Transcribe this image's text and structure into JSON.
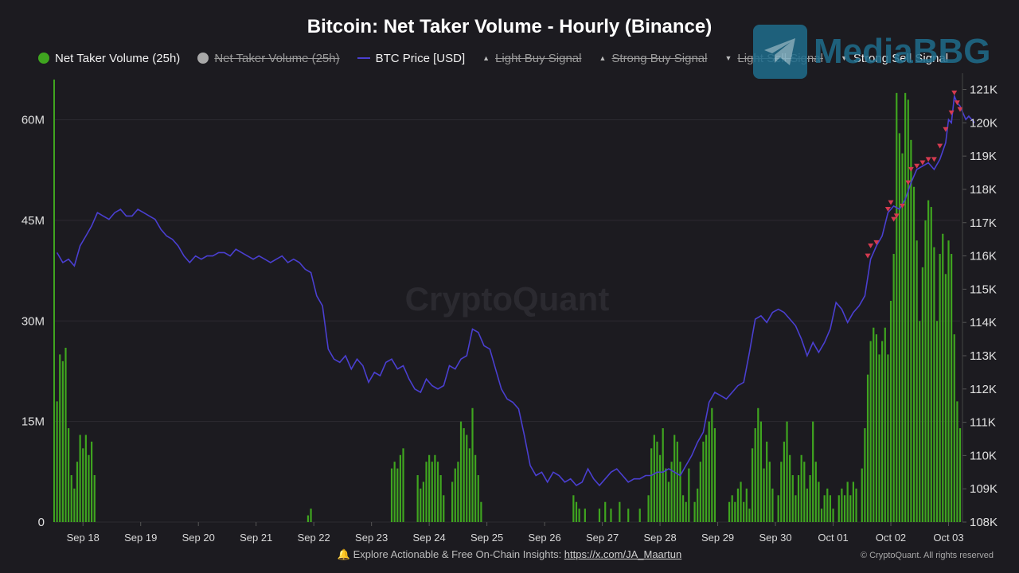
{
  "title": "Bitcoin: Net Taker Volume - Hourly (Binance)",
  "legend": [
    {
      "label": "Net Taker Volume (25h)",
      "symbol": "dot",
      "color": "#3fa51f",
      "active": true
    },
    {
      "label": "Net Taker Volume (25h)",
      "symbol": "dot",
      "color": "#a8a8a8",
      "active": false
    },
    {
      "label": "BTC Price [USD]",
      "symbol": "line",
      "color": "#4a3fd0",
      "active": true
    },
    {
      "label": "Light Buy Signal",
      "symbol": "triangle-up",
      "color": "#bbbbbb",
      "active": false
    },
    {
      "label": "Strong Buy Signal",
      "symbol": "triangle-up",
      "color": "#bbbbbb",
      "active": false
    },
    {
      "label": "Light Sell Signal",
      "symbol": "triangle-down",
      "color": "#bbbbbb",
      "active": false
    },
    {
      "label": "Strong Sell Signal",
      "symbol": "triangle-down",
      "color": "#bbbbbb",
      "active": true
    }
  ],
  "watermark": "CryptoQuant",
  "logo_text": "MediaBBG",
  "footer": {
    "prefix": "Explore Actionable & Free On-Chain Insights: ",
    "link": "https://x.com/JA_Maartun",
    "icon": "bell-icon"
  },
  "copyright": "© CryptoQuant. All rights reserved",
  "colors": {
    "background": "#1c1b20",
    "volume": "#3fa51f",
    "price": "#4a3fd0",
    "sell_signal": "#d43a4f",
    "grid": "#2c2b31"
  },
  "chart_data": {
    "type": "bar+line",
    "title": "Bitcoin: Net Taker Volume - Hourly (Binance)",
    "x_ticks": [
      "Sep 18",
      "Sep 19",
      "Sep 20",
      "Sep 21",
      "Sep 22",
      "Sep 23",
      "Sep 24",
      "Sep 25",
      "Sep 26",
      "Sep 27",
      "Sep 28",
      "Sep 29",
      "Sep 30",
      "Oct 01",
      "Oct 02",
      "Oct 03"
    ],
    "x_range_days": [
      17.5,
      33.2
    ],
    "y_left": {
      "ticks": [
        "0",
        "15M",
        "30M",
        "45M",
        "60M"
      ],
      "range": [
        0,
        66000000
      ]
    },
    "y_right": {
      "ticks": [
        "108K",
        "109K",
        "110K",
        "111K",
        "112K",
        "113K",
        "114K",
        "115K",
        "116K",
        "117K",
        "118K",
        "119K",
        "120K",
        "121K"
      ],
      "range": [
        108000,
        121300
      ]
    },
    "volume_bars": [
      [
        17.55,
        18
      ],
      [
        17.6,
        25
      ],
      [
        17.65,
        24
      ],
      [
        17.7,
        26
      ],
      [
        17.75,
        14
      ],
      [
        17.8,
        7
      ],
      [
        17.85,
        5
      ],
      [
        17.9,
        9
      ],
      [
        17.95,
        13
      ],
      [
        18.0,
        11
      ],
      [
        18.05,
        13
      ],
      [
        18.1,
        10
      ],
      [
        18.15,
        12
      ],
      [
        18.2,
        7
      ],
      [
        21.9,
        1
      ],
      [
        21.95,
        2
      ],
      [
        23.35,
        8
      ],
      [
        23.4,
        9
      ],
      [
        23.45,
        8
      ],
      [
        23.5,
        10
      ],
      [
        23.55,
        11
      ],
      [
        23.8,
        7
      ],
      [
        23.85,
        5
      ],
      [
        23.9,
        6
      ],
      [
        23.95,
        9
      ],
      [
        24.0,
        10
      ],
      [
        24.05,
        9
      ],
      [
        24.1,
        10
      ],
      [
        24.15,
        9
      ],
      [
        24.2,
        7
      ],
      [
        24.25,
        4
      ],
      [
        24.4,
        6
      ],
      [
        24.45,
        8
      ],
      [
        24.5,
        9
      ],
      [
        24.55,
        15
      ],
      [
        24.6,
        14
      ],
      [
        24.65,
        13
      ],
      [
        24.7,
        11
      ],
      [
        24.75,
        17
      ],
      [
        24.8,
        10
      ],
      [
        24.85,
        7
      ],
      [
        24.9,
        3
      ],
      [
        26.5,
        4
      ],
      [
        26.55,
        3
      ],
      [
        26.6,
        2
      ],
      [
        26.7,
        2
      ],
      [
        26.95,
        2
      ],
      [
        27.05,
        3
      ],
      [
        27.15,
        2
      ],
      [
        27.3,
        3
      ],
      [
        27.45,
        2
      ],
      [
        27.65,
        2
      ],
      [
        27.8,
        4
      ],
      [
        27.85,
        11
      ],
      [
        27.9,
        13
      ],
      [
        27.95,
        12
      ],
      [
        28.0,
        10
      ],
      [
        28.05,
        14
      ],
      [
        28.1,
        8
      ],
      [
        28.15,
        6
      ],
      [
        28.2,
        9
      ],
      [
        28.25,
        13
      ],
      [
        28.3,
        12
      ],
      [
        28.35,
        9
      ],
      [
        28.4,
        4
      ],
      [
        28.45,
        3
      ],
      [
        28.5,
        8
      ],
      [
        28.6,
        3
      ],
      [
        28.65,
        5
      ],
      [
        28.7,
        9
      ],
      [
        28.75,
        12
      ],
      [
        28.8,
        13
      ],
      [
        28.85,
        15
      ],
      [
        28.9,
        17
      ],
      [
        28.95,
        14
      ],
      [
        29.2,
        3
      ],
      [
        29.25,
        4
      ],
      [
        29.3,
        3
      ],
      [
        29.35,
        5
      ],
      [
        29.4,
        6
      ],
      [
        29.45,
        3
      ],
      [
        29.5,
        5
      ],
      [
        29.55,
        2
      ],
      [
        29.6,
        11
      ],
      [
        29.65,
        14
      ],
      [
        29.7,
        17
      ],
      [
        29.75,
        15
      ],
      [
        29.8,
        8
      ],
      [
        29.85,
        12
      ],
      [
        29.9,
        9
      ],
      [
        29.95,
        5
      ],
      [
        30.05,
        4
      ],
      [
        30.1,
        9
      ],
      [
        30.15,
        12
      ],
      [
        30.2,
        15
      ],
      [
        30.25,
        10
      ],
      [
        30.3,
        7
      ],
      [
        30.35,
        4
      ],
      [
        30.4,
        7
      ],
      [
        30.45,
        10
      ],
      [
        30.5,
        9
      ],
      [
        30.55,
        5
      ],
      [
        30.6,
        7
      ],
      [
        30.65,
        15
      ],
      [
        30.7,
        9
      ],
      [
        30.75,
        6
      ],
      [
        30.8,
        2
      ],
      [
        30.85,
        4
      ],
      [
        30.9,
        5
      ],
      [
        30.95,
        4
      ],
      [
        31.0,
        2
      ],
      [
        31.1,
        4
      ],
      [
        31.15,
        5
      ],
      [
        31.2,
        4
      ],
      [
        31.25,
        6
      ],
      [
        31.3,
        4
      ],
      [
        31.35,
        6
      ],
      [
        31.4,
        5
      ],
      [
        31.5,
        8
      ],
      [
        31.55,
        14
      ],
      [
        31.6,
        22
      ],
      [
        31.65,
        27
      ],
      [
        31.7,
        29
      ],
      [
        31.75,
        28
      ],
      [
        31.8,
        25
      ],
      [
        31.85,
        27
      ],
      [
        31.9,
        29
      ],
      [
        31.95,
        25
      ],
      [
        32.0,
        33
      ],
      [
        32.05,
        40
      ],
      [
        32.1,
        64
      ],
      [
        32.15,
        58
      ],
      [
        32.2,
        55
      ],
      [
        32.25,
        64
      ],
      [
        32.3,
        63
      ],
      [
        32.35,
        57
      ],
      [
        32.4,
        50
      ],
      [
        32.45,
        42
      ],
      [
        32.5,
        30
      ],
      [
        32.55,
        38
      ],
      [
        32.6,
        45
      ],
      [
        32.65,
        48
      ],
      [
        32.7,
        47
      ],
      [
        32.75,
        41
      ],
      [
        32.8,
        30
      ],
      [
        32.85,
        40
      ],
      [
        32.9,
        43
      ],
      [
        32.95,
        37
      ],
      [
        33.0,
        42
      ],
      [
        33.05,
        40
      ],
      [
        33.1,
        28
      ],
      [
        33.15,
        18
      ],
      [
        33.2,
        14
      ]
    ],
    "price_line": [
      [
        17.55,
        116.1
      ],
      [
        17.65,
        115.8
      ],
      [
        17.75,
        115.9
      ],
      [
        17.85,
        115.7
      ],
      [
        17.95,
        116.3
      ],
      [
        18.05,
        116.6
      ],
      [
        18.15,
        116.9
      ],
      [
        18.25,
        117.3
      ],
      [
        18.35,
        117.2
      ],
      [
        18.45,
        117.1
      ],
      [
        18.55,
        117.3
      ],
      [
        18.65,
        117.4
      ],
      [
        18.75,
        117.2
      ],
      [
        18.85,
        117.2
      ],
      [
        18.95,
        117.4
      ],
      [
        19.05,
        117.3
      ],
      [
        19.15,
        117.2
      ],
      [
        19.25,
        117.1
      ],
      [
        19.35,
        116.8
      ],
      [
        19.45,
        116.6
      ],
      [
        19.55,
        116.5
      ],
      [
        19.65,
        116.3
      ],
      [
        19.75,
        116.0
      ],
      [
        19.85,
        115.8
      ],
      [
        19.95,
        116.0
      ],
      [
        20.05,
        115.9
      ],
      [
        20.15,
        116.0
      ],
      [
        20.25,
        116.0
      ],
      [
        20.35,
        116.1
      ],
      [
        20.45,
        116.1
      ],
      [
        20.55,
        116.0
      ],
      [
        20.65,
        116.2
      ],
      [
        20.75,
        116.1
      ],
      [
        20.85,
        116.0
      ],
      [
        20.95,
        115.9
      ],
      [
        21.05,
        116.0
      ],
      [
        21.15,
        115.9
      ],
      [
        21.25,
        115.8
      ],
      [
        21.35,
        115.9
      ],
      [
        21.45,
        116.0
      ],
      [
        21.55,
        115.8
      ],
      [
        21.65,
        115.9
      ],
      [
        21.75,
        115.8
      ],
      [
        21.85,
        115.6
      ],
      [
        21.95,
        115.5
      ],
      [
        22.05,
        114.8
      ],
      [
        22.15,
        114.5
      ],
      [
        22.25,
        113.2
      ],
      [
        22.35,
        112.9
      ],
      [
        22.45,
        112.8
      ],
      [
        22.55,
        113.0
      ],
      [
        22.65,
        112.6
      ],
      [
        22.75,
        112.9
      ],
      [
        22.85,
        112.7
      ],
      [
        22.95,
        112.2
      ],
      [
        23.05,
        112.5
      ],
      [
        23.15,
        112.4
      ],
      [
        23.25,
        112.8
      ],
      [
        23.35,
        112.9
      ],
      [
        23.45,
        112.6
      ],
      [
        23.55,
        112.7
      ],
      [
        23.65,
        112.3
      ],
      [
        23.75,
        112.0
      ],
      [
        23.85,
        111.9
      ],
      [
        23.95,
        112.3
      ],
      [
        24.05,
        112.1
      ],
      [
        24.15,
        112.0
      ],
      [
        24.25,
        112.1
      ],
      [
        24.35,
        112.7
      ],
      [
        24.45,
        112.6
      ],
      [
        24.55,
        112.9
      ],
      [
        24.65,
        113.0
      ],
      [
        24.75,
        113.8
      ],
      [
        24.85,
        113.7
      ],
      [
        24.95,
        113.3
      ],
      [
        25.05,
        113.2
      ],
      [
        25.15,
        112.6
      ],
      [
        25.25,
        112.0
      ],
      [
        25.35,
        111.7
      ],
      [
        25.45,
        111.6
      ],
      [
        25.55,
        111.4
      ],
      [
        25.65,
        110.6
      ],
      [
        25.75,
        109.7
      ],
      [
        25.85,
        109.4
      ],
      [
        25.95,
        109.5
      ],
      [
        26.05,
        109.2
      ],
      [
        26.15,
        109.5
      ],
      [
        26.25,
        109.4
      ],
      [
        26.35,
        109.2
      ],
      [
        26.45,
        109.3
      ],
      [
        26.55,
        109.1
      ],
      [
        26.65,
        109.2
      ],
      [
        26.75,
        109.6
      ],
      [
        26.85,
        109.3
      ],
      [
        26.95,
        109.1
      ],
      [
        27.05,
        109.3
      ],
      [
        27.15,
        109.5
      ],
      [
        27.25,
        109.6
      ],
      [
        27.35,
        109.4
      ],
      [
        27.45,
        109.2
      ],
      [
        27.55,
        109.3
      ],
      [
        27.65,
        109.3
      ],
      [
        27.75,
        109.4
      ],
      [
        27.85,
        109.4
      ],
      [
        27.95,
        109.5
      ],
      [
        28.05,
        109.5
      ],
      [
        28.15,
        109.6
      ],
      [
        28.25,
        109.5
      ],
      [
        28.35,
        109.4
      ],
      [
        28.45,
        109.7
      ],
      [
        28.55,
        110.0
      ],
      [
        28.65,
        110.4
      ],
      [
        28.75,
        110.7
      ],
      [
        28.85,
        111.6
      ],
      [
        28.95,
        111.9
      ],
      [
        29.05,
        111.8
      ],
      [
        29.15,
        111.7
      ],
      [
        29.25,
        111.9
      ],
      [
        29.35,
        112.1
      ],
      [
        29.45,
        112.2
      ],
      [
        29.55,
        113.1
      ],
      [
        29.65,
        114.1
      ],
      [
        29.75,
        114.2
      ],
      [
        29.85,
        114.0
      ],
      [
        29.95,
        114.3
      ],
      [
        30.05,
        114.4
      ],
      [
        30.15,
        114.3
      ],
      [
        30.25,
        114.1
      ],
      [
        30.35,
        113.9
      ],
      [
        30.45,
        113.5
      ],
      [
        30.55,
        113.0
      ],
      [
        30.65,
        113.4
      ],
      [
        30.75,
        113.1
      ],
      [
        30.85,
        113.4
      ],
      [
        30.95,
        113.8
      ],
      [
        31.05,
        114.6
      ],
      [
        31.15,
        114.4
      ],
      [
        31.25,
        114.0
      ],
      [
        31.35,
        114.3
      ],
      [
        31.45,
        114.5
      ],
      [
        31.55,
        114.8
      ],
      [
        31.65,
        115.9
      ],
      [
        31.75,
        116.3
      ],
      [
        31.85,
        116.6
      ],
      [
        31.95,
        117.3
      ],
      [
        32.05,
        117.5
      ],
      [
        32.15,
        117.4
      ],
      [
        32.25,
        117.7
      ],
      [
        32.35,
        118.2
      ],
      [
        32.45,
        118.6
      ],
      [
        32.55,
        118.7
      ],
      [
        32.65,
        118.8
      ],
      [
        32.75,
        118.6
      ],
      [
        32.85,
        118.9
      ],
      [
        32.95,
        119.4
      ],
      [
        33.0,
        120.1
      ],
      [
        33.05,
        120.0
      ],
      [
        33.1,
        120.8
      ],
      [
        33.15,
        120.6
      ],
      [
        33.2,
        120.5
      ],
      [
        33.25,
        120.3
      ],
      [
        33.3,
        120.1
      ],
      [
        33.35,
        120.2
      ],
      [
        33.45,
        120.0
      ]
    ],
    "strong_sell_signals": [
      [
        31.6,
        116.0
      ],
      [
        31.65,
        116.3
      ],
      [
        31.75,
        116.4
      ],
      [
        31.95,
        117.4
      ],
      [
        32.0,
        117.6
      ],
      [
        32.05,
        117.1
      ],
      [
        32.1,
        117.2
      ],
      [
        32.2,
        117.5
      ],
      [
        32.3,
        118.2
      ],
      [
        32.35,
        118.6
      ],
      [
        32.45,
        118.7
      ],
      [
        32.55,
        118.8
      ],
      [
        32.65,
        118.9
      ],
      [
        32.75,
        118.9
      ],
      [
        32.85,
        119.3
      ],
      [
        32.95,
        119.8
      ],
      [
        33.05,
        120.3
      ],
      [
        33.1,
        120.9
      ],
      [
        33.15,
        120.6
      ],
      [
        33.2,
        120.4
      ]
    ]
  }
}
